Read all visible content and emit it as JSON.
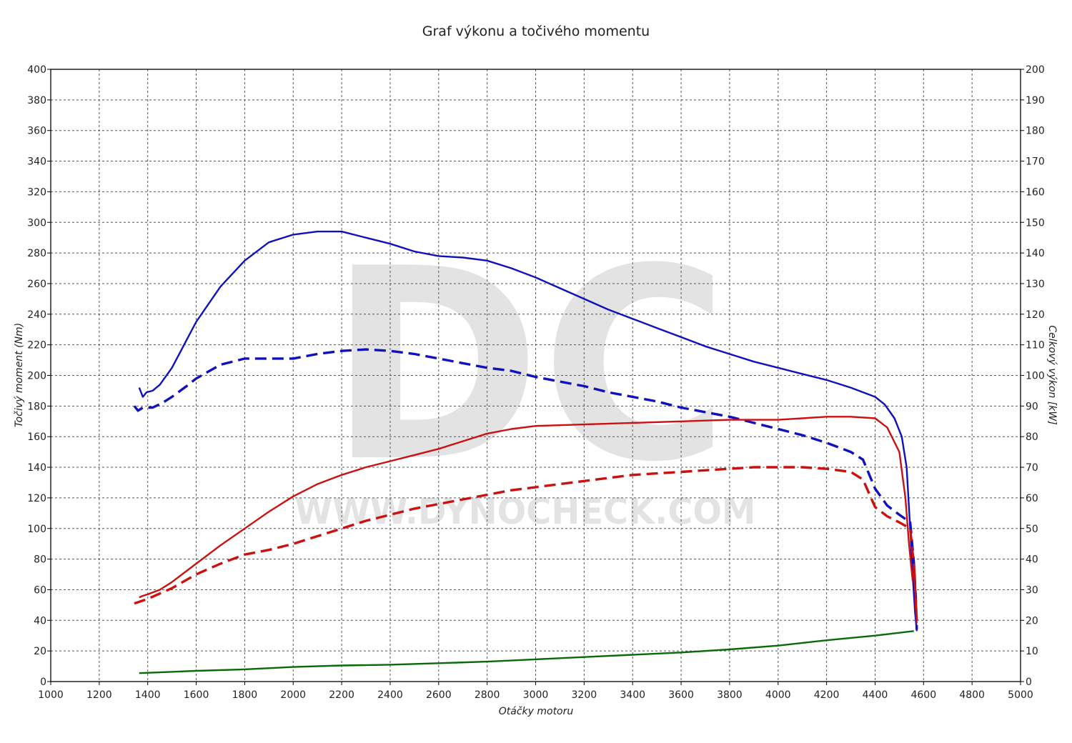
{
  "chart_data": {
    "type": "line",
    "title": "Graf výkonu a točivého momentu",
    "xlabel": "Otáčky motoru",
    "ylabel_left": "Točivý moment (Nm)",
    "ylabel_right": "Celkový výkon [kW]",
    "xlim": [
      1000,
      5000
    ],
    "ylim_left": [
      0,
      400
    ],
    "ylim_right": [
      0,
      200
    ],
    "x_ticks": [
      "1000",
      "1200",
      "1400",
      "1600",
      "1800",
      "2000",
      "2200",
      "2400",
      "2600",
      "2800",
      "3000",
      "3200",
      "3400",
      "3600",
      "3800",
      "4000",
      "4200",
      "4400",
      "4600",
      "4800",
      "5000"
    ],
    "y_left_ticks": [
      "0",
      "20",
      "40",
      "60",
      "80",
      "100",
      "120",
      "140",
      "160",
      "180",
      "200",
      "220",
      "240",
      "260",
      "280",
      "300",
      "320",
      "340",
      "360",
      "380",
      "400"
    ],
    "y_right_ticks": [
      "0",
      "10",
      "20",
      "30",
      "40",
      "50",
      "60",
      "70",
      "80",
      "90",
      "100",
      "110",
      "120",
      "130",
      "140",
      "150",
      "160",
      "170",
      "180",
      "190",
      "200"
    ],
    "grid": true,
    "watermark": {
      "logo": "DC",
      "site": "WWW.DYNOCHECK.COM"
    },
    "colors": {
      "torque": "#1010c0",
      "power": "#cc1010",
      "loss": "#0a6a0a",
      "grid": "#555555"
    },
    "series": [
      {
        "axis": "left",
        "style": "solid",
        "color": "#1010c0",
        "points": [
          [
            1365,
            192
          ],
          [
            1380,
            186
          ],
          [
            1395,
            189
          ],
          [
            1420,
            190
          ],
          [
            1450,
            194
          ],
          [
            1500,
            205
          ],
          [
            1550,
            220
          ],
          [
            1600,
            235
          ],
          [
            1700,
            258
          ],
          [
            1800,
            275
          ],
          [
            1900,
            287
          ],
          [
            2000,
            292
          ],
          [
            2100,
            294
          ],
          [
            2200,
            294
          ],
          [
            2300,
            290
          ],
          [
            2400,
            286
          ],
          [
            2500,
            281
          ],
          [
            2600,
            278
          ],
          [
            2700,
            277
          ],
          [
            2800,
            275
          ],
          [
            2900,
            270
          ],
          [
            3000,
            264
          ],
          [
            3100,
            257
          ],
          [
            3200,
            250
          ],
          [
            3300,
            243
          ],
          [
            3400,
            237
          ],
          [
            3500,
            231
          ],
          [
            3600,
            225
          ],
          [
            3700,
            219
          ],
          [
            3800,
            214
          ],
          [
            3900,
            209
          ],
          [
            4000,
            205
          ],
          [
            4100,
            201
          ],
          [
            4200,
            197
          ],
          [
            4300,
            192
          ],
          [
            4400,
            186
          ],
          [
            4440,
            181
          ],
          [
            4480,
            172
          ],
          [
            4510,
            160
          ],
          [
            4530,
            140
          ],
          [
            4545,
            100
          ],
          [
            4555,
            70
          ],
          [
            4565,
            45
          ],
          [
            4572,
            33
          ]
        ]
      },
      {
        "axis": "left",
        "style": "dashed",
        "color": "#1010c0",
        "points": [
          [
            1345,
            180
          ],
          [
            1360,
            177
          ],
          [
            1380,
            179
          ],
          [
            1420,
            179
          ],
          [
            1460,
            182
          ],
          [
            1500,
            186
          ],
          [
            1560,
            193
          ],
          [
            1600,
            198
          ],
          [
            1700,
            207
          ],
          [
            1800,
            211
          ],
          [
            1900,
            211
          ],
          [
            2000,
            211
          ],
          [
            2100,
            214
          ],
          [
            2200,
            216
          ],
          [
            2300,
            217
          ],
          [
            2400,
            216
          ],
          [
            2500,
            214
          ],
          [
            2600,
            211
          ],
          [
            2700,
            208
          ],
          [
            2800,
            205
          ],
          [
            2900,
            203
          ],
          [
            3000,
            199
          ],
          [
            3100,
            196
          ],
          [
            3200,
            193
          ],
          [
            3300,
            189
          ],
          [
            3400,
            186
          ],
          [
            3500,
            183
          ],
          [
            3600,
            179
          ],
          [
            3700,
            176
          ],
          [
            3800,
            173
          ],
          [
            3900,
            169
          ],
          [
            4000,
            165
          ],
          [
            4100,
            161
          ],
          [
            4200,
            156
          ],
          [
            4300,
            150
          ],
          [
            4350,
            145
          ],
          [
            4400,
            126
          ],
          [
            4450,
            115
          ],
          [
            4500,
            109
          ],
          [
            4545,
            104
          ],
          [
            4560,
            78
          ],
          [
            4568,
            55
          ],
          [
            4572,
            34
          ]
        ]
      },
      {
        "axis": "right",
        "style": "solid",
        "color": "#cc1010",
        "points": [
          [
            1365,
            27.5
          ],
          [
            1380,
            28
          ],
          [
            1400,
            28.5
          ],
          [
            1450,
            30
          ],
          [
            1500,
            32.5
          ],
          [
            1600,
            38.5
          ],
          [
            1700,
            44.5
          ],
          [
            1800,
            50
          ],
          [
            1900,
            55.5
          ],
          [
            2000,
            60.5
          ],
          [
            2100,
            64.5
          ],
          [
            2200,
            67.5
          ],
          [
            2300,
            70
          ],
          [
            2400,
            72
          ],
          [
            2500,
            74
          ],
          [
            2600,
            76
          ],
          [
            2700,
            78.5
          ],
          [
            2800,
            81
          ],
          [
            2900,
            82.5
          ],
          [
            3000,
            83.5
          ],
          [
            3200,
            84
          ],
          [
            3400,
            84.5
          ],
          [
            3600,
            85
          ],
          [
            3800,
            85.5
          ],
          [
            4000,
            85.5
          ],
          [
            4100,
            86
          ],
          [
            4200,
            86.5
          ],
          [
            4300,
            86.5
          ],
          [
            4400,
            86
          ],
          [
            4450,
            83
          ],
          [
            4500,
            75
          ],
          [
            4525,
            60
          ],
          [
            4540,
            45
          ],
          [
            4555,
            33
          ],
          [
            4562,
            38
          ],
          [
            4568,
            25
          ],
          [
            4572,
            19
          ]
        ]
      },
      {
        "axis": "right",
        "style": "dashed",
        "color": "#cc1010",
        "points": [
          [
            1345,
            25.5
          ],
          [
            1400,
            27
          ],
          [
            1500,
            30.5
          ],
          [
            1600,
            35
          ],
          [
            1700,
            38.5
          ],
          [
            1800,
            41.5
          ],
          [
            1900,
            43
          ],
          [
            2000,
            45
          ],
          [
            2100,
            47.5
          ],
          [
            2200,
            50
          ],
          [
            2300,
            52.5
          ],
          [
            2400,
            54.5
          ],
          [
            2500,
            56.5
          ],
          [
            2600,
            58
          ],
          [
            2700,
            59.5
          ],
          [
            2800,
            61
          ],
          [
            2900,
            62.5
          ],
          [
            3000,
            63.5
          ],
          [
            3100,
            64.5
          ],
          [
            3200,
            65.5
          ],
          [
            3300,
            66.5
          ],
          [
            3400,
            67.5
          ],
          [
            3500,
            68
          ],
          [
            3600,
            68.5
          ],
          [
            3700,
            69
          ],
          [
            3800,
            69.5
          ],
          [
            3900,
            70
          ],
          [
            4000,
            70
          ],
          [
            4100,
            70
          ],
          [
            4200,
            69.5
          ],
          [
            4300,
            68.5
          ],
          [
            4350,
            66
          ],
          [
            4400,
            57
          ],
          [
            4450,
            54
          ],
          [
            4500,
            52
          ],
          [
            4545,
            50
          ],
          [
            4555,
            42
          ],
          [
            4562,
            36
          ],
          [
            4568,
            26
          ],
          [
            4572,
            20
          ]
        ]
      },
      {
        "axis": "left",
        "style": "solid",
        "color": "#0a6a0a",
        "points": [
          [
            1365,
            5.5
          ],
          [
            1600,
            7
          ],
          [
            1800,
            8
          ],
          [
            2000,
            9.5
          ],
          [
            2200,
            10.5
          ],
          [
            2400,
            11
          ],
          [
            2600,
            12
          ],
          [
            2800,
            13
          ],
          [
            3000,
            14.5
          ],
          [
            3200,
            16
          ],
          [
            3400,
            17.5
          ],
          [
            3600,
            19
          ],
          [
            3800,
            21
          ],
          [
            4000,
            23.5
          ],
          [
            4200,
            27
          ],
          [
            4400,
            30
          ],
          [
            4560,
            33
          ]
        ]
      }
    ]
  }
}
